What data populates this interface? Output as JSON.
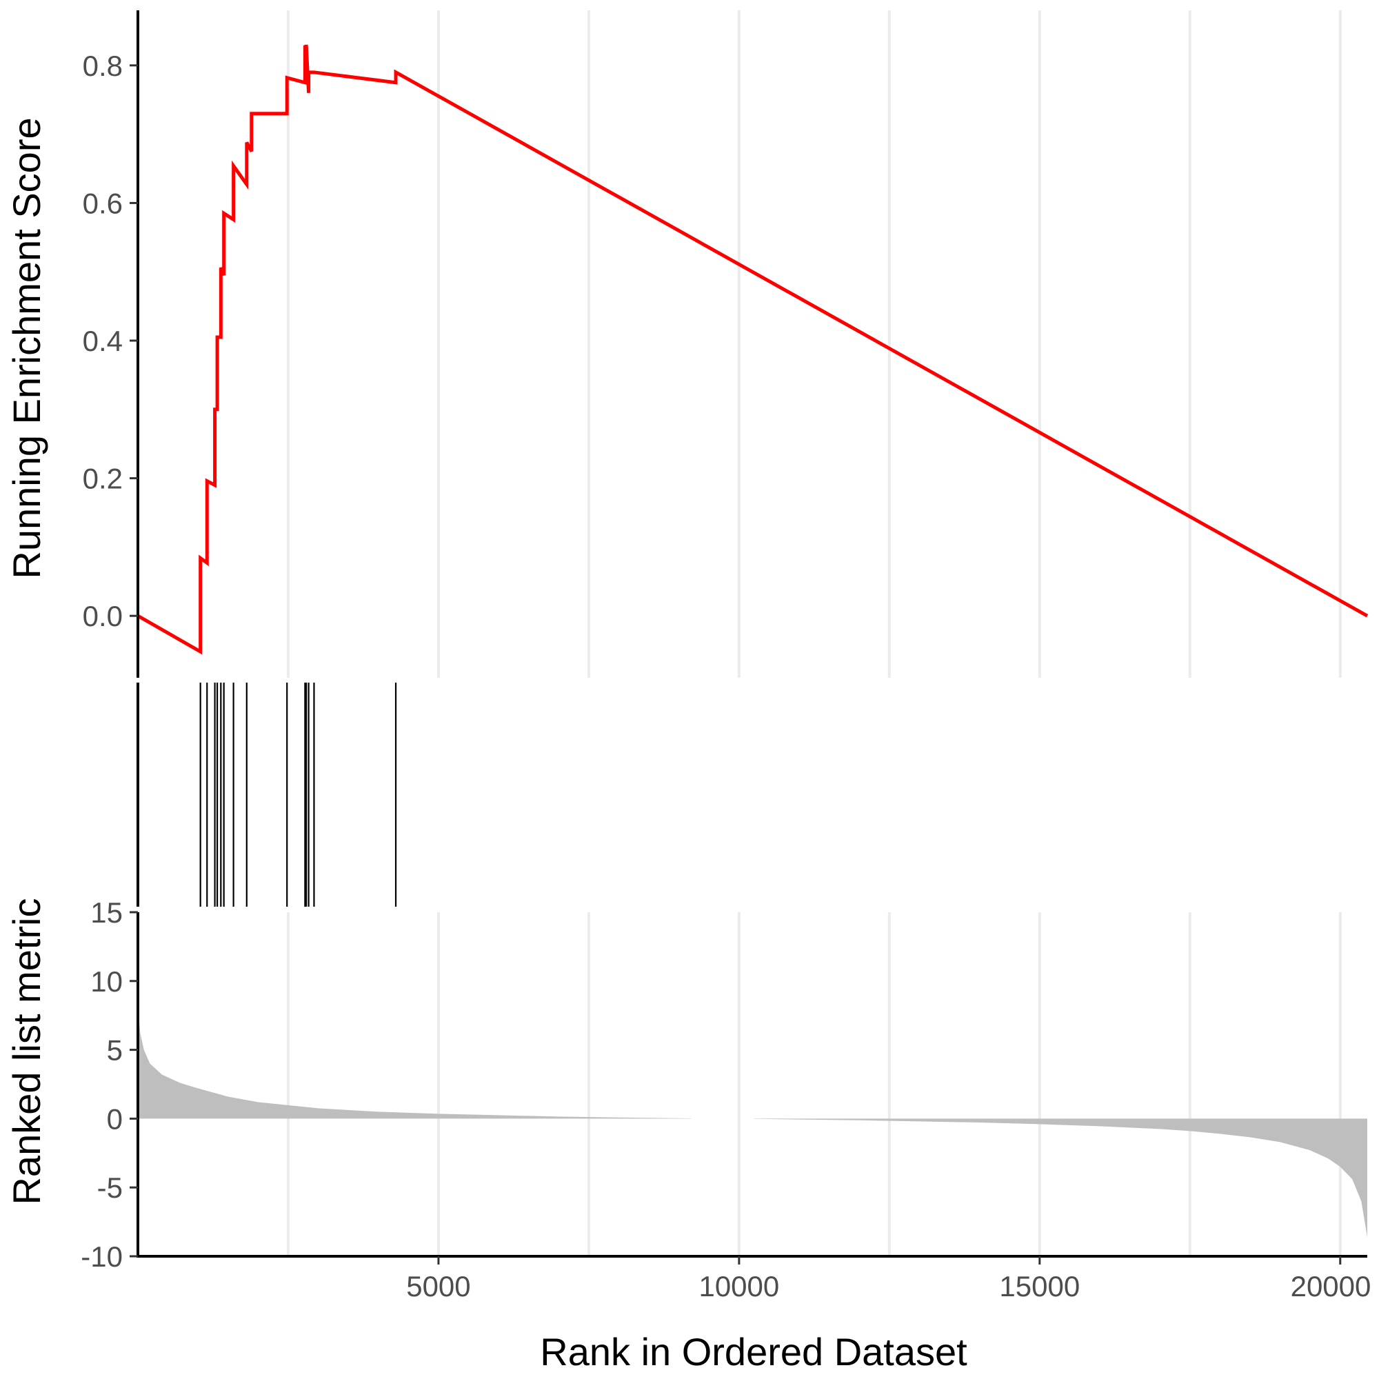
{
  "chart_data": {
    "type": "line",
    "panels": [
      {
        "name": "enrichment",
        "ylabel": "Running Enrichment Score",
        "yticks": [
          0.0,
          0.2,
          0.4,
          0.6,
          0.8
        ],
        "ytick_labels": [
          "0.0",
          "0.2",
          "0.4",
          "0.6",
          "0.8"
        ],
        "ylim": [
          -0.09,
          0.88
        ],
        "series": [
          {
            "color": "#ff0000",
            "x": [
              0,
              1040,
              1040,
              1150,
              1150,
              1280,
              1280,
              1320,
              1320,
              1380,
              1380,
              1430,
              1430,
              1590,
              1590,
              1810,
              1810,
              1890,
              1890,
              2480,
              2480,
              2780,
              2780,
              2800,
              2800,
              2840,
              2840,
              2930,
              2930,
              4290,
              4290,
              20450
            ],
            "y": [
              0.0,
              -0.052,
              0.084,
              0.077,
              0.196,
              0.19,
              0.3,
              0.3,
              0.405,
              0.405,
              0.506,
              0.495,
              0.585,
              0.576,
              0.654,
              0.627,
              0.688,
              0.675,
              0.73,
              0.73,
              0.782,
              0.775,
              0.829,
              0.825,
              0.83,
              0.76,
              0.79,
              0.79,
              0.79,
              0.775,
              0.79,
              0.0
            ]
          }
        ]
      },
      {
        "name": "hits",
        "hit_ranks": [
          1040,
          1150,
          1280,
          1320,
          1380,
          1430,
          1590,
          1810,
          2480,
          2780,
          2800,
          2840,
          2930,
          4290
        ]
      },
      {
        "name": "ranked-metric",
        "ylabel": "Ranked list metric",
        "yticks": [
          -10,
          -5,
          0,
          5,
          10,
          15
        ],
        "ytick_labels": [
          "-10",
          "-5",
          "0",
          "5",
          "10",
          "15"
        ],
        "ylim": [
          -10,
          15
        ],
        "fill_color": "#bebebe",
        "gap": [
          9200,
          10250
        ],
        "x": [
          0,
          40,
          100,
          200,
          400,
          700,
          1000,
          1500,
          2000,
          3000,
          4000,
          5000,
          6000,
          7000,
          8000,
          9200,
          10250,
          11000,
          12000,
          13000,
          14000,
          15000,
          16000,
          17000,
          17500,
          18000,
          18500,
          19000,
          19500,
          19800,
          20000,
          20200,
          20350,
          20450
        ],
        "y": [
          8.0,
          6.2,
          5.0,
          4.0,
          3.2,
          2.6,
          2.2,
          1.6,
          1.2,
          0.75,
          0.5,
          0.35,
          0.25,
          0.15,
          0.08,
          0.02,
          -0.02,
          -0.06,
          -0.12,
          -0.2,
          -0.28,
          -0.4,
          -0.55,
          -0.75,
          -0.9,
          -1.1,
          -1.35,
          -1.7,
          -2.3,
          -2.9,
          -3.5,
          -4.4,
          -6.0,
          -8.6
        ]
      }
    ],
    "xlabel": "Rank in Ordered Dataset",
    "xticks": [
      5000,
      10000,
      15000,
      20000
    ],
    "xtick_labels": [
      "5000",
      "10000",
      "15000",
      "20000"
    ],
    "xlim": [
      0,
      20450
    ],
    "grid": {
      "vertical_major": [
        5000,
        10000,
        15000,
        20000
      ],
      "vertical_minor": [
        2500,
        7500,
        12500,
        17500
      ],
      "horizontal": false,
      "color": "#ebebeb"
    }
  }
}
